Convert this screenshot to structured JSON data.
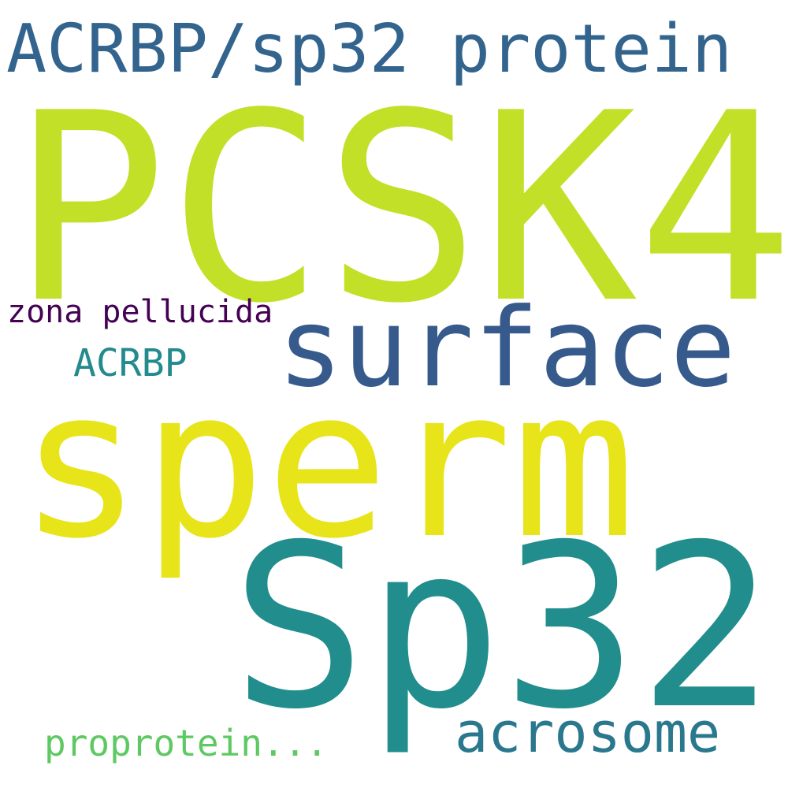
{
  "words": [
    {
      "text": "ACRBP/sp32 protein",
      "color": "#32648e"
    },
    {
      "text": "PCSK4",
      "color": "#c2e027"
    },
    {
      "text": "zona pellucida",
      "color": "#440154"
    },
    {
      "text": "surface",
      "color": "#375a8c"
    },
    {
      "text": "ACRBP",
      "color": "#238a8d"
    },
    {
      "text": "sperm",
      "color": "#e8e41a"
    },
    {
      "text": "Sp32",
      "color": "#228d8d"
    },
    {
      "text": "acrosome",
      "color": "#2a788e"
    },
    {
      "text": "proprotein...",
      "color": "#5ec962"
    }
  ]
}
